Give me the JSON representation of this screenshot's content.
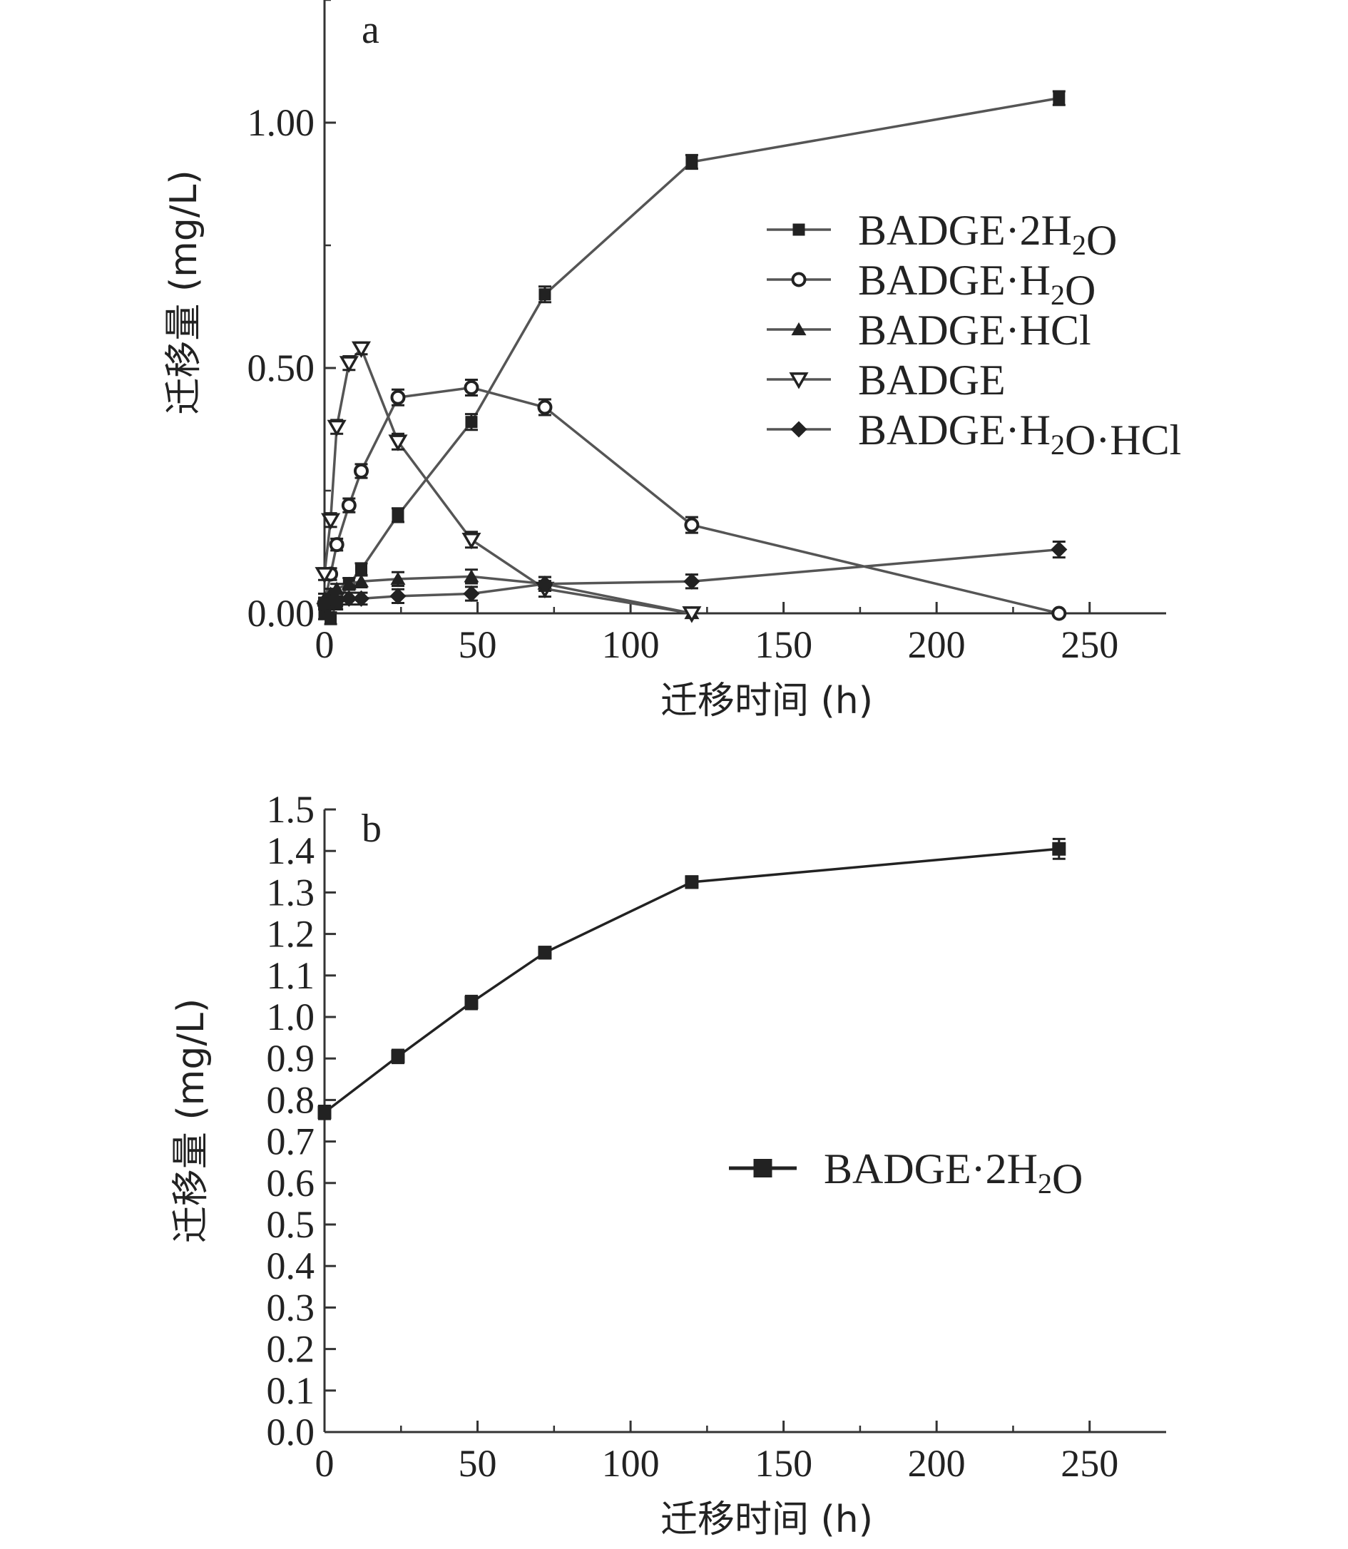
{
  "chart_data": [
    {
      "type": "line",
      "panel_label": "a",
      "xlabel": "迁移时间 (h)",
      "ylabel": "迁移量 (mg/L)",
      "xlim": [
        0,
        275
      ],
      "ylim": [
        0,
        1.25
      ],
      "x_ticks": [
        0,
        50,
        100,
        150,
        200,
        250
      ],
      "x_tick_labels": [
        "0",
        "50",
        "100",
        "150",
        "200",
        "250"
      ],
      "y_ticks": [
        0,
        0.5,
        1.0
      ],
      "y_tick_labels": [
        "0.00",
        "0.50",
        "1.00"
      ],
      "legend_position": "center-right",
      "colors": {
        "line": "#555555",
        "marker": "#222222"
      },
      "series": [
        {
          "name": "BADGE·2H₂O",
          "marker": "square",
          "x": [
            0,
            2,
            4,
            8,
            12,
            24,
            48,
            72,
            120,
            240
          ],
          "y": [
            0.0,
            -0.01,
            0.02,
            0.06,
            0.09,
            0.2,
            0.39,
            0.65,
            0.92,
            1.05
          ],
          "err": [
            0.012,
            0.012,
            0.012,
            0.012,
            0.012,
            0.014,
            0.016,
            0.016,
            0.014,
            0.014
          ]
        },
        {
          "name": "BADGE·H₂O",
          "marker": "circle-open",
          "x": [
            0,
            2,
            4,
            8,
            12,
            24,
            48,
            72,
            120,
            240
          ],
          "y": [
            0.02,
            0.08,
            0.14,
            0.22,
            0.29,
            0.44,
            0.46,
            0.42,
            0.18,
            0.0
          ],
          "err": [
            0.012,
            0.012,
            0.012,
            0.014,
            0.014,
            0.016,
            0.016,
            0.016,
            0.016,
            0.0
          ]
        },
        {
          "name": "BADGE·HCl",
          "marker": "triangle-up",
          "x": [
            0,
            2,
            4,
            8,
            12,
            24,
            48,
            72,
            120
          ],
          "y": [
            0.03,
            0.04,
            0.05,
            0.06,
            0.065,
            0.07,
            0.075,
            0.06,
            0.0
          ],
          "err": [
            0.01,
            0.01,
            0.01,
            0.012,
            0.012,
            0.014,
            0.014,
            0.014,
            0.0
          ]
        },
        {
          "name": "BADGE",
          "marker": "triangle-down-open",
          "x": [
            0,
            2,
            4,
            8,
            12,
            24,
            48,
            72,
            120
          ],
          "y": [
            0.08,
            0.19,
            0.38,
            0.51,
            0.54,
            0.35,
            0.15,
            0.05,
            0.0
          ],
          "err": [
            0.012,
            0.014,
            0.014,
            0.014,
            0.012,
            0.016,
            0.016,
            0.016,
            0.0
          ]
        },
        {
          "name": "BADGE·H₂O·HCl",
          "marker": "diamond",
          "x": [
            0,
            2,
            4,
            8,
            12,
            24,
            48,
            72,
            120,
            240
          ],
          "y": [
            0.02,
            0.02,
            0.025,
            0.03,
            0.03,
            0.035,
            0.04,
            0.06,
            0.065,
            0.13
          ],
          "err": [
            0.01,
            0.01,
            0.01,
            0.012,
            0.012,
            0.014,
            0.014,
            0.014,
            0.014,
            0.016
          ]
        }
      ]
    },
    {
      "type": "line",
      "panel_label": "b",
      "xlabel": "迁移时间 (h)",
      "ylabel": "迁移量 (mg/L)",
      "xlim": [
        0,
        275
      ],
      "ylim": [
        0,
        1.5
      ],
      "x_ticks": [
        0,
        50,
        100,
        150,
        200,
        250
      ],
      "x_tick_labels": [
        "0",
        "50",
        "100",
        "150",
        "200",
        "250"
      ],
      "y_ticks": [
        0,
        0.1,
        0.2,
        0.3,
        0.4,
        0.5,
        0.6,
        0.7,
        0.8,
        0.9,
        1.0,
        1.1,
        1.2,
        1.3,
        1.4,
        1.5
      ],
      "y_tick_labels": [
        "0.0",
        "0.1",
        "0.2",
        "0.3",
        "0.4",
        "0.5",
        "0.6",
        "0.7",
        "0.8",
        "0.9",
        "1.0",
        "1.1",
        "1.2",
        "1.3",
        "1.4",
        "1.5"
      ],
      "legend_position": "center-right",
      "colors": {
        "line": "#222222",
        "marker": "#222222"
      },
      "series": [
        {
          "name": "BADGE·2H₂O",
          "marker": "square",
          "x": [
            0,
            24,
            48,
            72,
            120,
            240
          ],
          "y": [
            0.77,
            0.905,
            1.035,
            1.155,
            1.325,
            1.405
          ],
          "err": [
            0.016,
            0.016,
            0.016,
            0.014,
            0.014,
            0.024
          ]
        }
      ]
    }
  ]
}
